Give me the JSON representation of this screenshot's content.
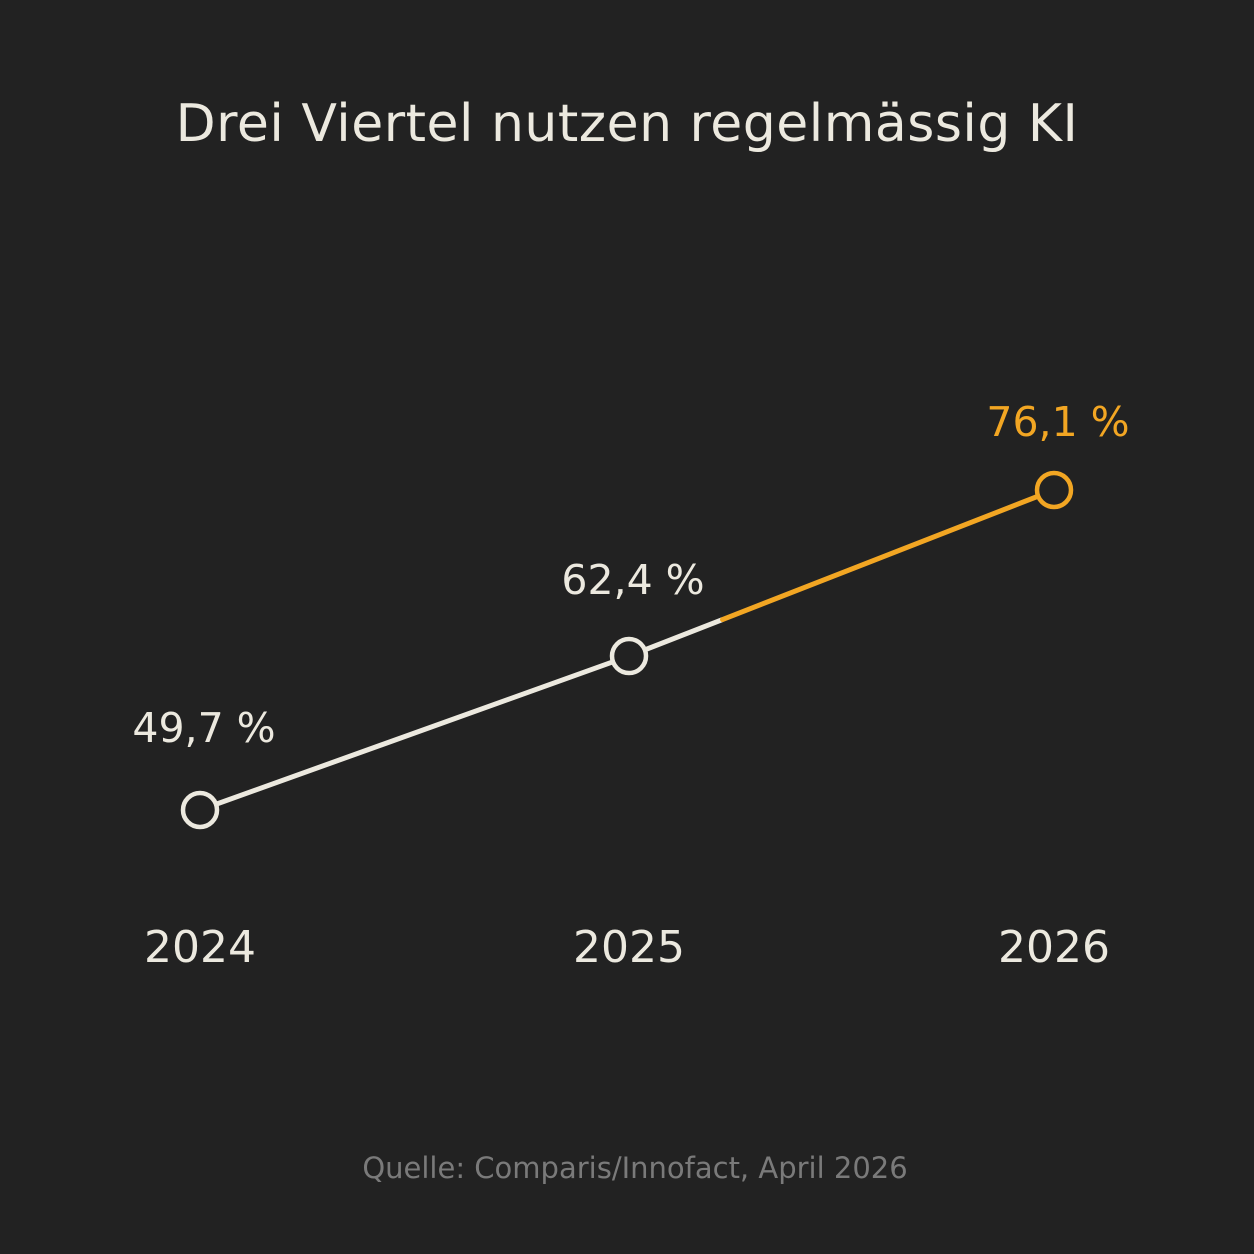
{
  "colors": {
    "background": "#222222",
    "primary": "#ECE9DF",
    "accent": "#F2A623",
    "muted": "#7A7A7A"
  },
  "chart_data": {
    "type": "line",
    "title": "Drei Viertel nutzen regelmässig KI",
    "categories": [
      "2024",
      "2025",
      "2026"
    ],
    "values": [
      49.7,
      62.4,
      76.1
    ],
    "value_labels": [
      "49,7 %",
      "62,4 %",
      "76,1 %"
    ],
    "unit": "%",
    "highlight": {
      "point": "2026",
      "segment": "2025-2026 second half",
      "color": "#F2A623"
    },
    "grid": false,
    "axes_visible": false,
    "legend": "none",
    "source": "Quelle: Comparis/Innofact, April 2026"
  }
}
